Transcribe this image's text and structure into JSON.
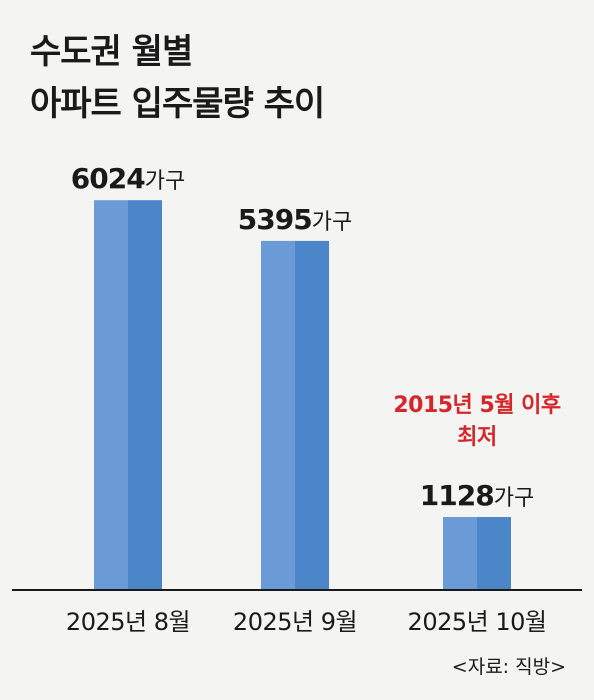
{
  "title": {
    "line1": "수도권 월별",
    "line2": "아파트 입주물량 추이"
  },
  "source": "<자료: 직방>",
  "colors": {
    "bar_light": "#6b9bd6",
    "bar_dark": "#4a86c8",
    "annotation": "#d6262a",
    "axis": "#1a1a1a"
  },
  "chart_data": {
    "type": "bar",
    "categories": [
      "2025년 8월",
      "2025년 9월",
      "2025년 10월"
    ],
    "values": [
      6024,
      5395,
      1128
    ],
    "unit": "가구",
    "ylim": [
      0,
      6800
    ],
    "grid": false,
    "annotations": [
      {
        "category": "2025년 10월",
        "lines": [
          "2015년 5월 이후",
          "최저"
        ]
      }
    ]
  }
}
